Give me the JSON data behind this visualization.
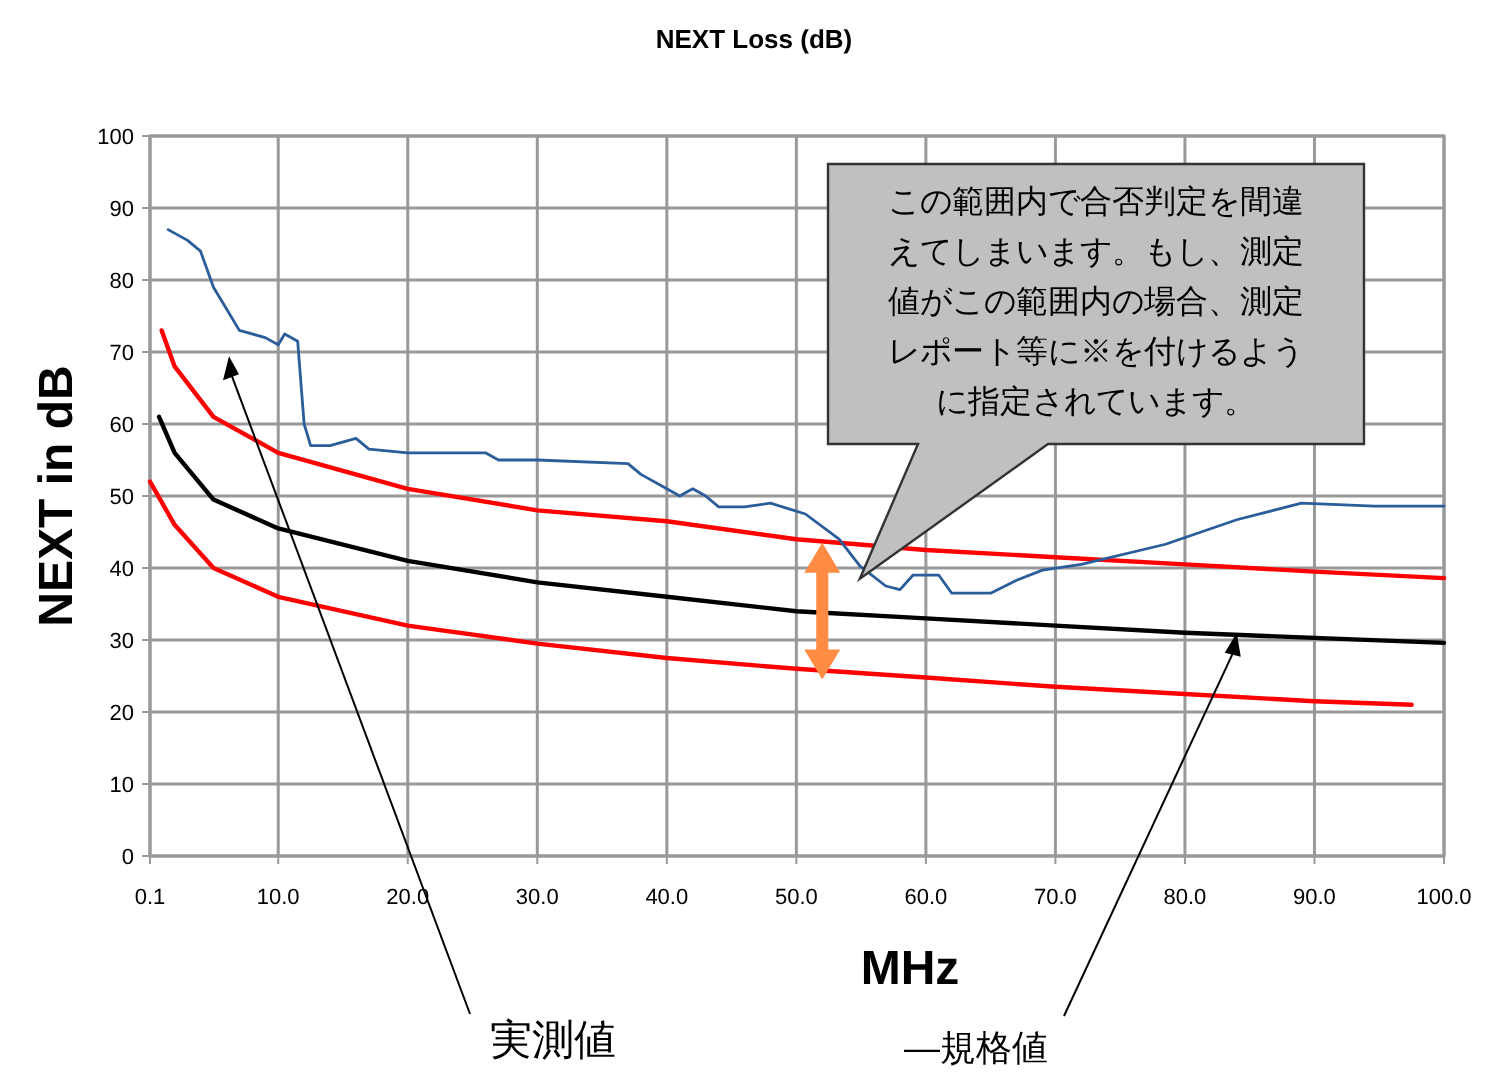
{
  "chart_data": {
    "type": "line",
    "title": "NEXT Loss (dB)",
    "xlabel": "MHz",
    "ylabel": "NEXT in dB",
    "xlim": [
      0.1,
      100
    ],
    "ylim": [
      0,
      100
    ],
    "xticks": [
      0.1,
      {
        "value": 10,
        "label": "10.0"
      },
      {
        "value": 20,
        "label": "20.0"
      },
      {
        "value": 30,
        "label": "30.0"
      },
      {
        "value": 40,
        "label": "40.0"
      },
      {
        "value": 50,
        "label": "50.0"
      },
      {
        "value": 60,
        "label": "60.0"
      },
      {
        "value": 70,
        "label": "70.0"
      },
      {
        "value": 80,
        "label": "80.0"
      },
      {
        "value": 90,
        "label": "90.0"
      },
      {
        "value": 100,
        "label": "100.0"
      }
    ],
    "yticks": [
      0,
      10,
      20,
      30,
      40,
      50,
      60,
      70,
      80,
      90,
      100
    ],
    "grid": true,
    "line_style": "solid",
    "series": [
      {
        "color": "#ff0000",
        "x": [
          1,
          2,
          5,
          10,
          20,
          30,
          40,
          50,
          60,
          70,
          80,
          90,
          100
        ],
        "values": [
          73,
          68,
          61,
          56,
          51,
          48,
          46.5,
          44,
          42.5,
          41.5,
          40.5,
          39.5,
          38.6
        ]
      },
      {
        "color": "#000000",
        "x": [
          0.8,
          2,
          5,
          10,
          20,
          30,
          40,
          50,
          60,
          70,
          80,
          90,
          100
        ],
        "values": [
          61,
          56,
          49.5,
          45.5,
          41,
          38,
          36,
          34,
          33,
          32,
          31,
          30.3,
          29.6
        ]
      },
      {
        "color": "#ff0000",
        "x": [
          0.1,
          2,
          5,
          10,
          20,
          30,
          40,
          50,
          60,
          70,
          80,
          90,
          97.5
        ],
        "values": [
          52,
          46,
          40,
          36,
          32,
          29.5,
          27.5,
          26,
          24.8,
          23.5,
          22.5,
          21.5,
          21
        ]
      },
      {
        "color": "#2a5d9a",
        "x": [
          1.5,
          3,
          4,
          5,
          6,
          7,
          9,
          10,
          10.5,
          11.5,
          12,
          12.5,
          14,
          16,
          17,
          20,
          26,
          27,
          30,
          37,
          38,
          40,
          41,
          42,
          43,
          44,
          46,
          48,
          50.7,
          53.3,
          54.9,
          56.9,
          58,
          59,
          61,
          62,
          65,
          67,
          69,
          72,
          78.5,
          84,
          89,
          94.6,
          100
        ],
        "values": [
          87,
          85.5,
          84,
          79,
          76,
          73,
          72,
          71,
          72.5,
          71.5,
          60,
          57,
          57,
          58,
          56.5,
          56,
          56,
          55,
          55,
          54.5,
          53,
          51,
          50,
          51,
          50,
          48.5,
          48.5,
          49,
          47.5,
          44,
          40.3,
          37.5,
          37,
          39,
          39,
          36.5,
          36.5,
          38.3,
          39.7,
          40.5,
          43.3,
          46.7,
          49,
          48.6,
          48.6
        ]
      }
    ],
    "annotations": [
      "この範囲内で合否判定を間違えてしまいます。もし、測定値がこの範囲内の場合、測定レポート等に※を付けるように指定されています。",
      "実測値",
      {
        "text": "—規格値",
        "x": 84,
        "y": 31
      }
    ]
  }
}
